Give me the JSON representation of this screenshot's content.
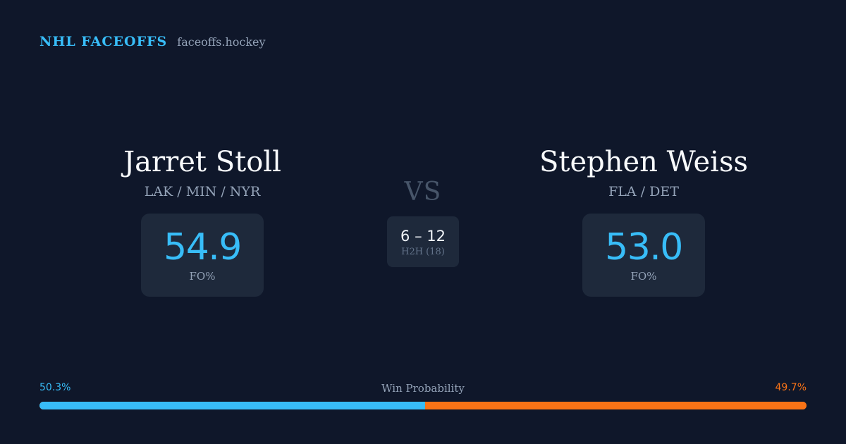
{
  "brand": {
    "name": "NHL FACEOFFS",
    "domain": "faceoffs.hockey"
  },
  "players": {
    "left": {
      "name": "Jarret Stoll",
      "teams": "LAK / MIN / NYR",
      "fo_pct": "54.9",
      "fo_label": "FO%"
    },
    "right": {
      "name": "Stephen Weiss",
      "teams": "FLA / DET",
      "fo_pct": "53.0",
      "fo_label": "FO%"
    }
  },
  "matchup": {
    "vs": "VS",
    "h2h_score": "6 – 12",
    "h2h_label": "H2H (18)"
  },
  "win_probability": {
    "title": "Win Probability",
    "left_label": "50.3%",
    "right_label": "49.7%",
    "left_value": 50.3,
    "right_value": 49.7
  },
  "colors": {
    "background": "#0f172a",
    "card": "#1e293b",
    "accent_blue": "#38bdf8",
    "accent_orange": "#f97316",
    "muted_text": "#94a3b8"
  }
}
